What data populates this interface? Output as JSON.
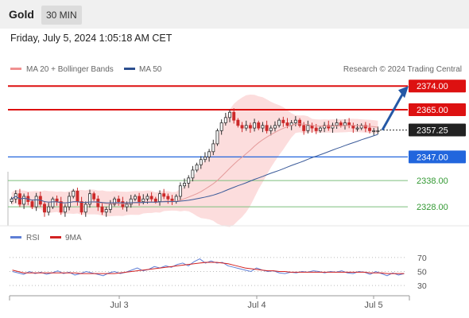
{
  "header": {
    "symbol": "Gold",
    "timeframe": "30 MIN",
    "datetime": "Friday, July 5, 2024 1:05:18 AM CET"
  },
  "legend": {
    "ma20": "MA 20 + Bollinger Bands",
    "ma50": "MA 50",
    "credit": "Research © 2024 Trading Central"
  },
  "rsi_legend": {
    "rsi": "RSI",
    "ma9": "9MA"
  },
  "colors": {
    "up": "#2f2f2f",
    "down": "#cc2a2a",
    "resistance": "#dd1111",
    "support": "#2266dd",
    "target": "#339933",
    "ma20": "#e49a9a",
    "ma50": "#3a5a99",
    "band": "#fbd7d7",
    "rsi": "#5f7fd6",
    "rsi_ma": "#d22222",
    "arrow": "#2458a6"
  },
  "chart_data": [
    {
      "type": "candlestick",
      "ylim": [
        2322,
        2378
      ],
      "x_ticks": [
        "Jul 3",
        "Jul 4",
        "Jul 5"
      ],
      "levels": [
        {
          "value": 2374.0,
          "label": "2374.00",
          "kind": "resistance"
        },
        {
          "value": 2365.0,
          "label": "2365.00",
          "kind": "resistance"
        },
        {
          "value": 2357.25,
          "label": "2357.25",
          "kind": "current"
        },
        {
          "value": 2347.0,
          "label": "2347.00",
          "kind": "support"
        },
        {
          "value": 2338.0,
          "label": "2338.00",
          "kind": "target"
        },
        {
          "value": 2328.0,
          "label": "2328.00",
          "kind": "target"
        }
      ],
      "forecast_arrow": {
        "from": 2357.25,
        "to": 2374.0
      },
      "closes": [
        2331,
        2333,
        2329,
        2332,
        2330,
        2328,
        2332,
        2329,
        2326,
        2328,
        2331,
        2330,
        2326,
        2328,
        2332,
        2334,
        2330,
        2326,
        2329,
        2333,
        2331,
        2328,
        2326,
        2327,
        2329,
        2331,
        2330,
        2328,
        2329,
        2331,
        2332,
        2330,
        2331,
        2332,
        2331,
        2330,
        2333,
        2332,
        2331,
        2330,
        2332,
        2336,
        2337,
        2339,
        2342,
        2344,
        2346,
        2347,
        2349,
        2352,
        2357,
        2360,
        2362,
        2364,
        2361,
        2359,
        2358,
        2359,
        2358,
        2360,
        2358,
        2359,
        2357,
        2358,
        2359,
        2361,
        2360,
        2359,
        2360,
        2361,
        2359,
        2357,
        2359,
        2358,
        2357,
        2358,
        2359,
        2358,
        2359,
        2360,
        2359,
        2360,
        2359,
        2358,
        2358,
        2359,
        2358,
        2357,
        2357,
        2357
      ]
    },
    {
      "type": "line",
      "title": "RSI",
      "ylim": [
        20,
        80
      ],
      "y_ticks": [
        70,
        50,
        30
      ],
      "series": [
        {
          "name": "RSI",
          "values": [
            50,
            48,
            46,
            50,
            47,
            49,
            46,
            48,
            51,
            47,
            49,
            45,
            47,
            50,
            48,
            46,
            44,
            48,
            50,
            47,
            49,
            52,
            55,
            51,
            53,
            57,
            55,
            58,
            56,
            60,
            62,
            58,
            64,
            68,
            62,
            65,
            62,
            63,
            58,
            56,
            54,
            52,
            50,
            55,
            52,
            50,
            51,
            48,
            47,
            49,
            48,
            50,
            49,
            51,
            50,
            48,
            50,
            49,
            51,
            48,
            47,
            50,
            49,
            46,
            50,
            47,
            44,
            48,
            45,
            47
          ]
        },
        {
          "name": "9MA",
          "values": [
            52,
            50,
            48,
            48,
            48,
            48,
            48,
            48,
            48,
            48,
            48,
            48,
            47,
            47,
            47,
            47,
            47,
            47,
            47,
            48,
            49,
            50,
            51,
            52,
            53,
            54,
            55,
            56,
            57,
            58,
            59,
            60,
            61,
            62,
            63,
            63,
            63,
            62,
            61,
            59,
            57,
            55,
            54,
            53,
            52,
            51,
            51,
            50,
            50,
            49,
            49,
            49,
            49,
            49,
            49,
            49,
            49,
            49,
            49,
            49,
            49,
            49,
            49,
            48,
            48,
            48,
            47,
            47,
            47,
            47
          ]
        }
      ]
    }
  ]
}
